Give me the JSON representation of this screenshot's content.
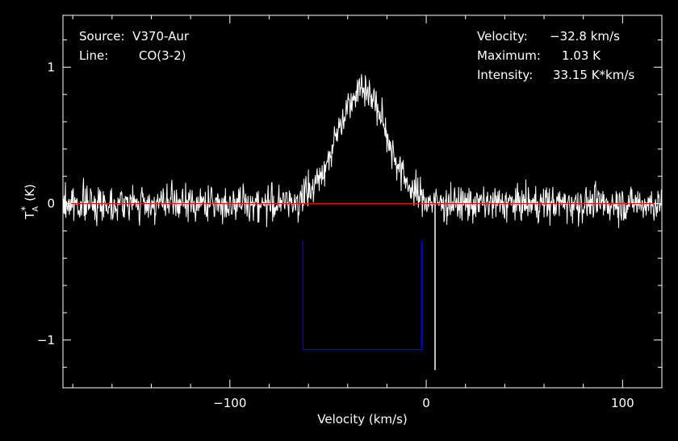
{
  "header": {
    "source_label": "Source:",
    "source_value": "V370-Aur",
    "line_label": "Line:",
    "line_value": "CO(3-2)",
    "velocity_label": "Velocity:",
    "velocity_value": "-32.8 km/s",
    "maximum_label": "Maximum:",
    "maximum_value": "1.03 K",
    "intensity_label": "Intensity:",
    "intensity_value": "33.15 K*km/s"
  },
  "chart_data": {
    "type": "line",
    "title": "",
    "xlabel": "Velocity (km/s)",
    "ylabel": "T*A (K)",
    "ylabel_main": "T",
    "ylabel_sup": "*",
    "ylabel_sub": "A",
    "ylabel_unit": "(K)",
    "xlim": [
      -185,
      120
    ],
    "ylim": [
      -1.35,
      1.38
    ],
    "xticks": [
      {
        "value": -100,
        "label": "−100"
      },
      {
        "value": 0,
        "label": "0"
      },
      {
        "value": 100,
        "label": "100"
      }
    ],
    "yticks": [
      {
        "value": -1,
        "label": "−1"
      },
      {
        "value": 0,
        "label": "0"
      },
      {
        "value": 1,
        "label": "1"
      }
    ],
    "series": [
      {
        "color": "#ffffff",
        "noise_sigma": 0.13,
        "profile": {
          "type": "gaussian",
          "center": -32.8,
          "peak": 0.85,
          "sigma": 12.5
        },
        "x_step": 0.25
      }
    ],
    "baseline": {
      "y": 0,
      "color": "#ff0000"
    },
    "integration_window": {
      "x_start": -62.8,
      "x_end": -2.3,
      "y_bottom": -1.07,
      "y_top": -0.27,
      "color": "#0000ff"
    },
    "spike": {
      "x": 4.5,
      "y_min": -1.22,
      "y_max": 0.02
    },
    "grid": false,
    "legend": "none"
  }
}
